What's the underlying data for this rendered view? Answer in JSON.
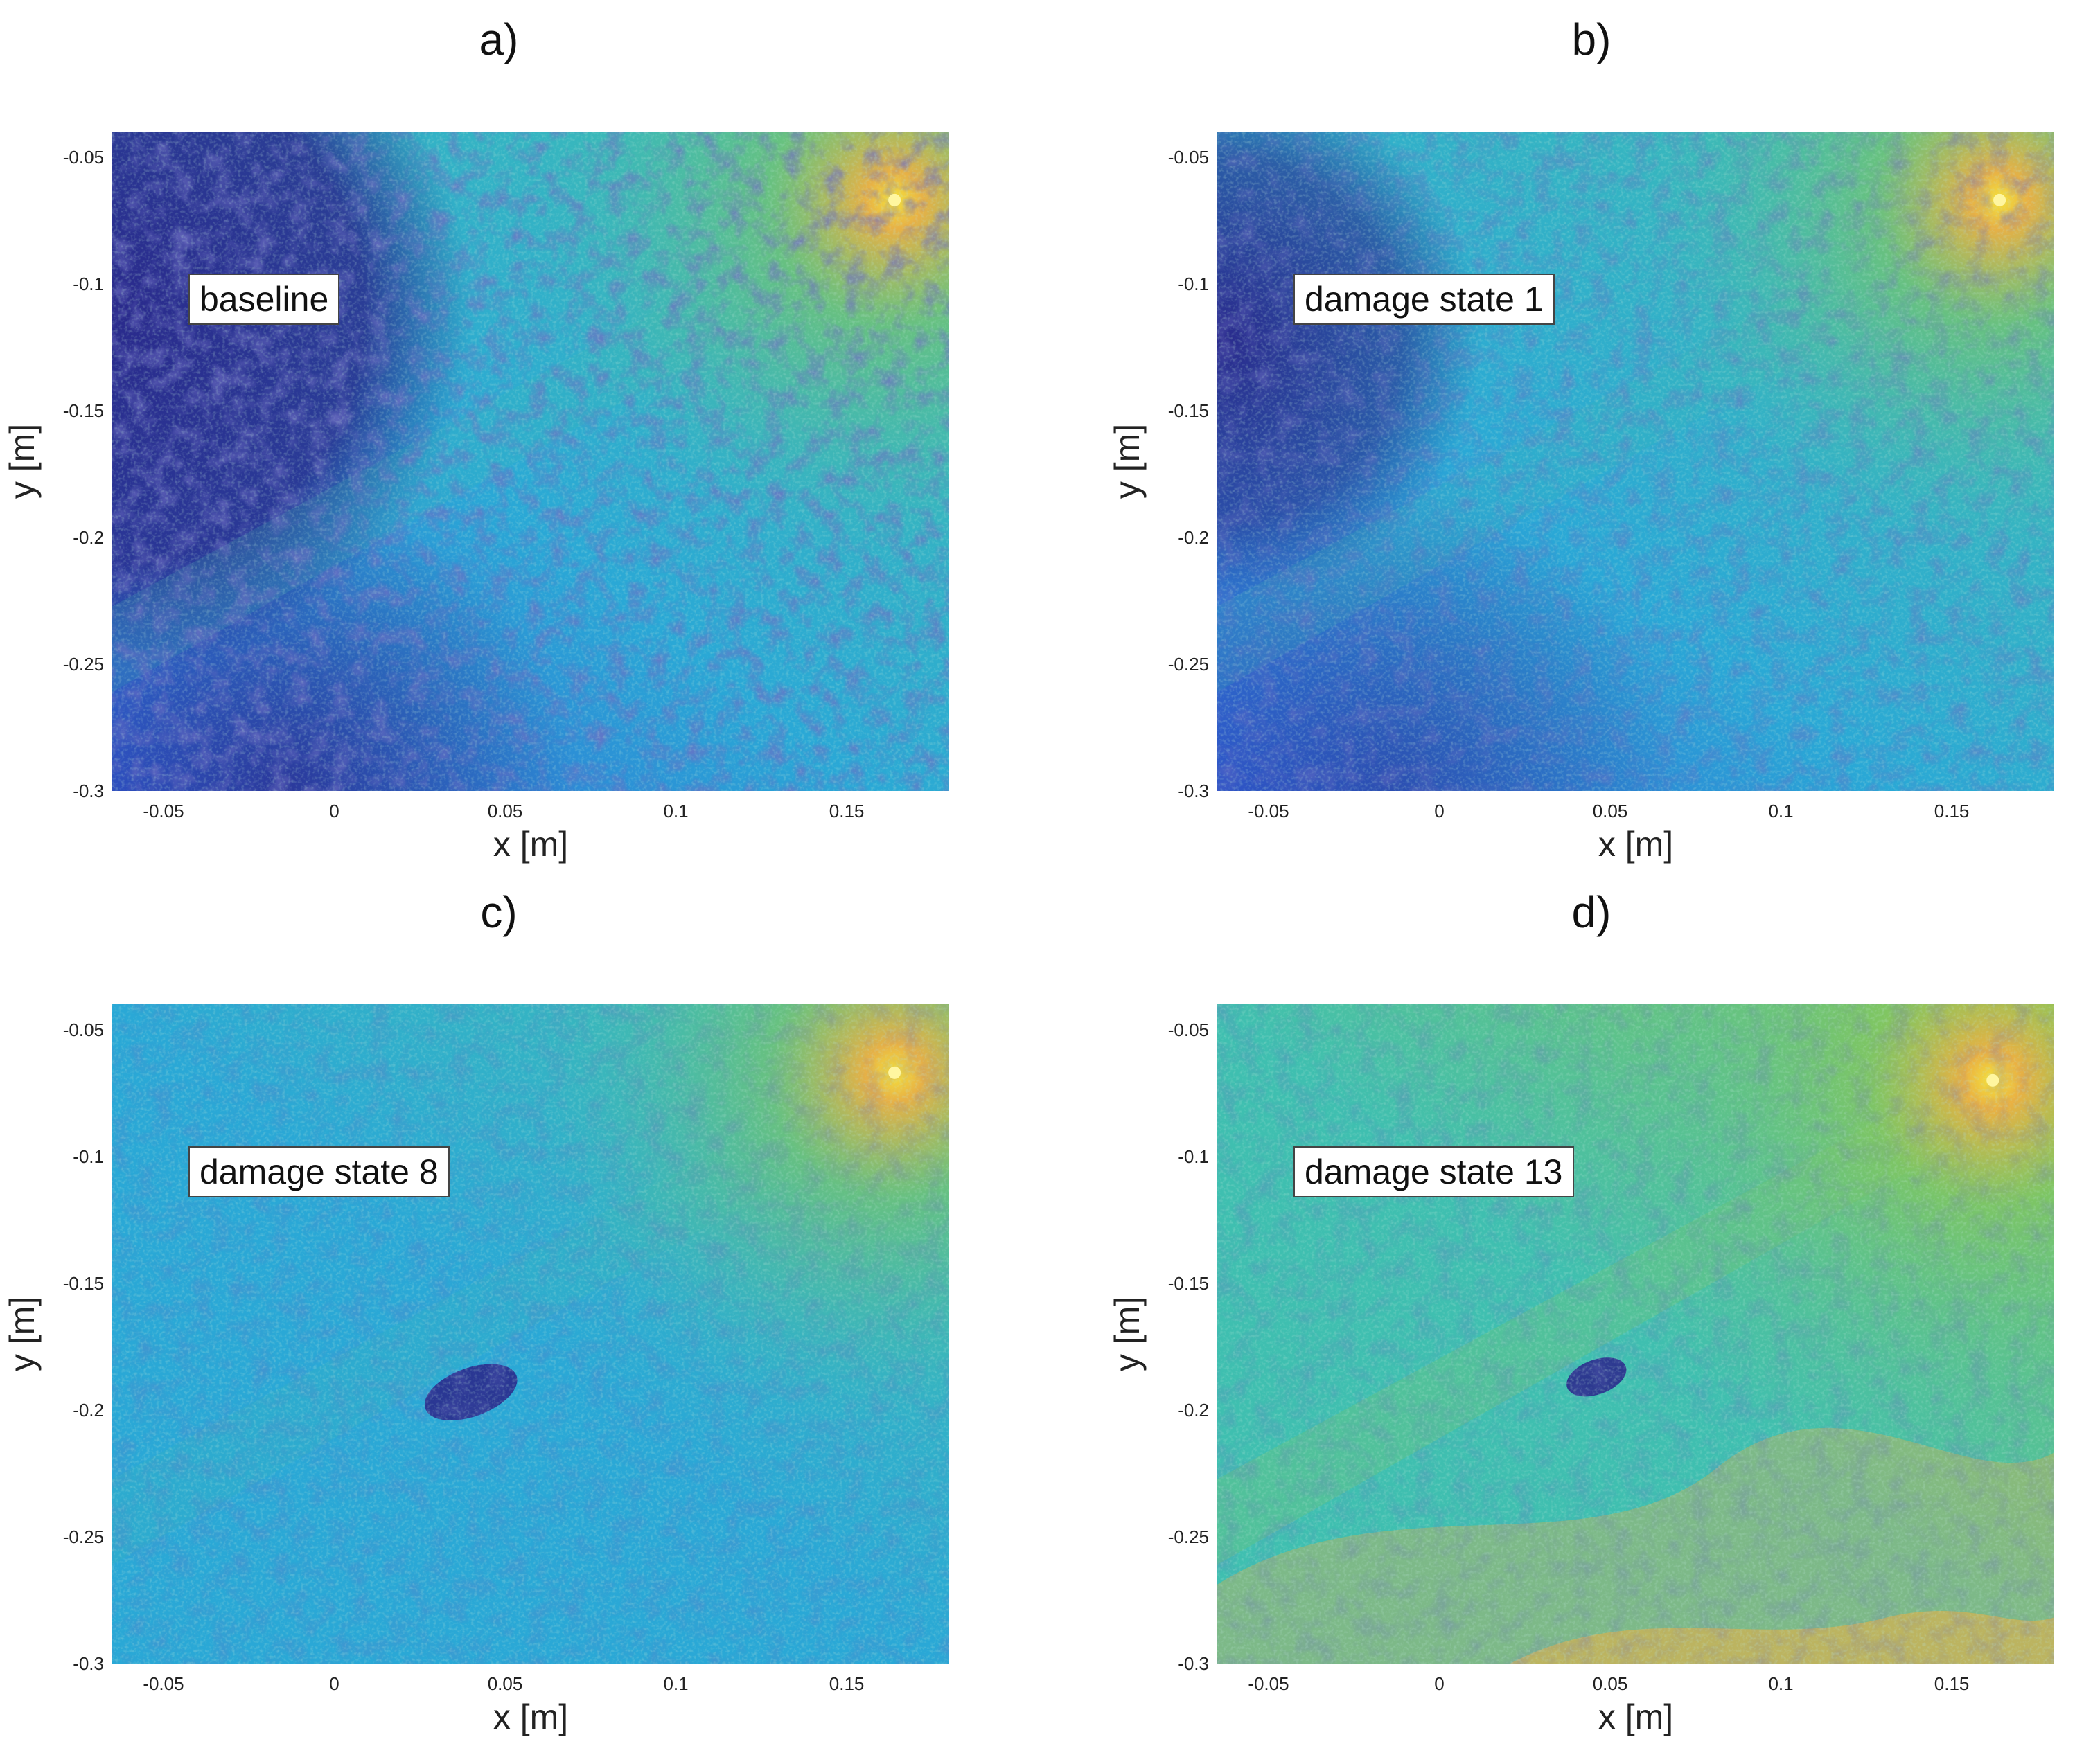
{
  "chart_data": [
    {
      "type": "heatmap",
      "panel_label": "a)",
      "annotation": "baseline",
      "xlabel": "x [m]",
      "ylabel": "y [m]",
      "xlim": [
        -0.065,
        0.18
      ],
      "ylim": [
        -0.3,
        -0.04
      ],
      "xticks": [
        -0.05,
        0,
        0.05,
        0.1,
        0.15
      ],
      "xtick_labels": [
        "-0.05",
        "0",
        "0.05",
        "0.1",
        "0.15"
      ],
      "yticks": [
        -0.05,
        -0.1,
        -0.15,
        -0.2,
        -0.25,
        -0.3
      ],
      "ytick_labels": [
        "-0.05",
        "-0.1",
        "-0.15",
        "-0.2",
        "-0.25",
        "-0.3"
      ],
      "colormap": "parula",
      "source_location": [
        0.164,
        -0.067
      ],
      "level": 0.0
    },
    {
      "type": "heatmap",
      "panel_label": "b)",
      "annotation": "damage state 1",
      "xlabel": "x [m]",
      "ylabel": "y [m]",
      "xlim": [
        -0.065,
        0.18
      ],
      "ylim": [
        -0.3,
        -0.04
      ],
      "xticks": [
        -0.05,
        0,
        0.05,
        0.1,
        0.15
      ],
      "xtick_labels": [
        "-0.05",
        "0",
        "0.05",
        "0.1",
        "0.15"
      ],
      "yticks": [
        -0.05,
        -0.1,
        -0.15,
        -0.2,
        -0.25,
        -0.3
      ],
      "ytick_labels": [
        "-0.05",
        "-0.1",
        "-0.15",
        "-0.2",
        "-0.25",
        "-0.3"
      ],
      "colormap": "parula",
      "source_location": [
        0.164,
        -0.067
      ],
      "level": 0.3
    },
    {
      "type": "heatmap",
      "panel_label": "c)",
      "annotation": "damage state 8",
      "xlabel": "x [m]",
      "ylabel": "y [m]",
      "xlim": [
        -0.065,
        0.18
      ],
      "ylim": [
        -0.3,
        -0.04
      ],
      "xticks": [
        -0.05,
        0,
        0.05,
        0.1,
        0.15
      ],
      "xtick_labels": [
        "-0.05",
        "0",
        "0.05",
        "0.1",
        "0.15"
      ],
      "yticks": [
        -0.05,
        -0.1,
        -0.15,
        -0.2,
        -0.25,
        -0.3
      ],
      "ytick_labels": [
        "-0.05",
        "-0.1",
        "-0.15",
        "-0.2",
        "-0.25",
        "-0.3"
      ],
      "colormap": "parula",
      "source_location": [
        0.164,
        -0.067
      ],
      "level": 0.6
    },
    {
      "type": "heatmap",
      "panel_label": "d)",
      "annotation": "damage state 13",
      "xlabel": "x [m]",
      "ylabel": "y [m]",
      "xlim": [
        -0.065,
        0.18
      ],
      "ylim": [
        -0.3,
        -0.04
      ],
      "xticks": [
        -0.05,
        0,
        0.05,
        0.1,
        0.15
      ],
      "xtick_labels": [
        "-0.05",
        "0",
        "0.05",
        "0.1",
        "0.15"
      ],
      "yticks": [
        -0.05,
        -0.1,
        -0.15,
        -0.2,
        -0.25,
        -0.3
      ],
      "ytick_labels": [
        "-0.05",
        "-0.1",
        "-0.15",
        "-0.2",
        "-0.25",
        "-0.3"
      ],
      "colormap": "parula",
      "source_location": [
        0.162,
        -0.07
      ],
      "level": 0.95
    }
  ],
  "colors": {
    "deep_blue": "#2a2a8c",
    "blue": "#2f5fd6",
    "cyan": "#2aa8d6",
    "teal": "#3fbfb0",
    "green": "#86c65a",
    "orange": "#f0b040",
    "yellow": "#f5e23a"
  }
}
